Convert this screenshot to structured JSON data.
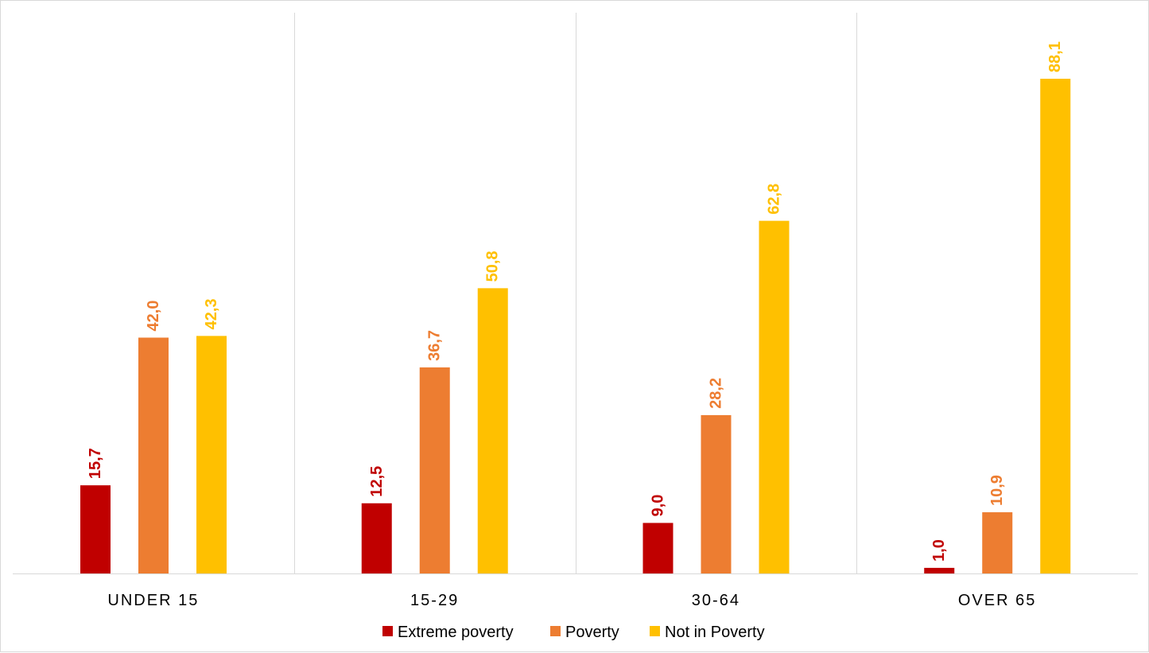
{
  "chart_data": {
    "type": "bar",
    "categories": [
      "UNDER 15",
      "15-29",
      "30-64",
      "OVER 65"
    ],
    "series": [
      {
        "name": "Extreme poverty",
        "values": [
          15.7,
          12.5,
          9.0,
          1.0
        ],
        "labels": [
          "15,7",
          "12,5",
          "9,0",
          "1,0"
        ],
        "color": "#C00000"
      },
      {
        "name": "Poverty",
        "values": [
          42.0,
          36.7,
          28.2,
          10.9
        ],
        "labels": [
          "42,0",
          "36,7",
          "28,2",
          "10,9"
        ],
        "color": "#ED7D31"
      },
      {
        "name": "Not in Poverty",
        "values": [
          42.3,
          50.8,
          62.8,
          88.1
        ],
        "labels": [
          "42,3",
          "50,8",
          "62,8",
          "88,1"
        ],
        "color": "#FFC000"
      }
    ],
    "ylim": [
      0,
      100
    ],
    "grid": false,
    "category_dividers": true,
    "legend_position": "bottom"
  }
}
